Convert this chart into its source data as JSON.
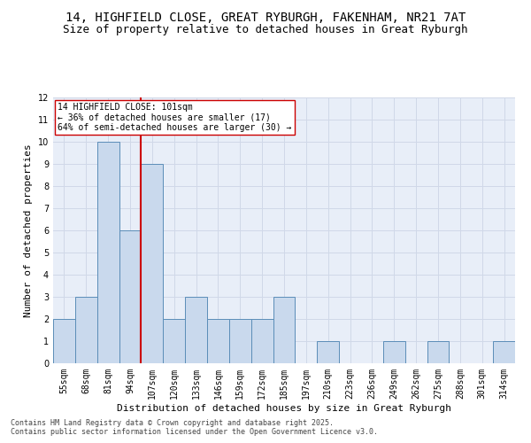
{
  "title_line1": "14, HIGHFIELD CLOSE, GREAT RYBURGH, FAKENHAM, NR21 7AT",
  "title_line2": "Size of property relative to detached houses in Great Ryburgh",
  "xlabel": "Distribution of detached houses by size in Great Ryburgh",
  "ylabel": "Number of detached properties",
  "categories": [
    "55sqm",
    "68sqm",
    "81sqm",
    "94sqm",
    "107sqm",
    "120sqm",
    "133sqm",
    "146sqm",
    "159sqm",
    "172sqm",
    "185sqm",
    "197sqm",
    "210sqm",
    "223sqm",
    "236sqm",
    "249sqm",
    "262sqm",
    "275sqm",
    "288sqm",
    "301sqm",
    "314sqm"
  ],
  "values": [
    2,
    3,
    10,
    6,
    9,
    2,
    3,
    2,
    2,
    2,
    3,
    0,
    1,
    0,
    0,
    1,
    0,
    1,
    0,
    0,
    1
  ],
  "bar_color": "#c9d9ed",
  "bar_edge_color": "#5b8db8",
  "vline_position": 3.5,
  "vline_color": "#cc0000",
  "annotation_text": "14 HIGHFIELD CLOSE: 101sqm\n← 36% of detached houses are smaller (17)\n64% of semi-detached houses are larger (30) →",
  "annotation_box_color": "#ffffff",
  "annotation_box_edge": "#cc0000",
  "ylim": [
    0,
    12
  ],
  "yticks": [
    0,
    1,
    2,
    3,
    4,
    5,
    6,
    7,
    8,
    9,
    10,
    11,
    12
  ],
  "grid_color": "#d0d8e8",
  "background_color": "#e8eef8",
  "footer_line1": "Contains HM Land Registry data © Crown copyright and database right 2025.",
  "footer_line2": "Contains public sector information licensed under the Open Government Licence v3.0.",
  "title_fontsize": 10,
  "subtitle_fontsize": 9,
  "axis_label_fontsize": 8,
  "tick_fontsize": 7,
  "annotation_fontsize": 7,
  "footer_fontsize": 6
}
